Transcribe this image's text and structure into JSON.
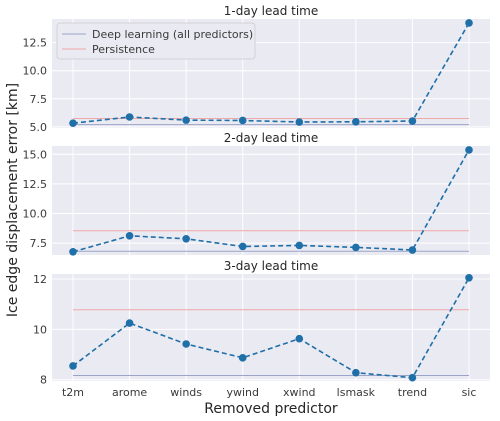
{
  "chart_data": {
    "type": "line",
    "xlabel": "Removed predictor",
    "ylabel": "Ice edge displacement error [km]",
    "categories": [
      "t2m",
      "arome",
      "winds",
      "ywind",
      "xwind",
      "lsmask",
      "trend",
      "sic"
    ],
    "legend": {
      "placement": "upper-left of top panel",
      "entries": [
        {
          "label": "Deep learning (all predictors)",
          "key": "deep_learning"
        },
        {
          "label": "Persistence",
          "key": "persistence"
        }
      ]
    },
    "colors": {
      "series": "#1f6fa8",
      "deep_learning": "#9aa4c8",
      "persistence": "#f0a8a8",
      "panel_background": "#eaeaf2",
      "grid": "#ffffff"
    },
    "grid": true,
    "panels": [
      {
        "title": "1-day lead time",
        "ylim": [
          4.9,
          14.6
        ],
        "yticks": [
          5.0,
          7.5,
          10.0,
          12.5
        ],
        "ytick_labels": [
          "5.0",
          "7.5",
          "10.0",
          "12.5"
        ],
        "values": [
          5.33,
          5.88,
          5.6,
          5.57,
          5.43,
          5.45,
          5.52,
          14.25
        ],
        "deep_learning": 5.2,
        "persistence": 5.75
      },
      {
        "title": "2-day lead time",
        "ylim": [
          6.5,
          15.7
        ],
        "yticks": [
          7.5,
          10.0,
          12.5,
          15.0
        ],
        "ytick_labels": [
          "7.5",
          "10.0",
          "12.5",
          "15.0"
        ],
        "values": [
          6.77,
          8.12,
          7.87,
          7.22,
          7.31,
          7.14,
          6.92,
          15.37
        ],
        "deep_learning": 6.82,
        "persistence": 8.55
      },
      {
        "title": "3-day lead time",
        "ylim": [
          7.95,
          12.2
        ],
        "yticks": [
          8,
          10,
          12
        ],
        "ytick_labels": [
          "8",
          "10",
          "12"
        ],
        "values": [
          8.55,
          10.25,
          9.42,
          8.87,
          9.63,
          8.28,
          8.08,
          12.05
        ],
        "deep_learning": 8.17,
        "persistence": 10.78
      }
    ]
  }
}
